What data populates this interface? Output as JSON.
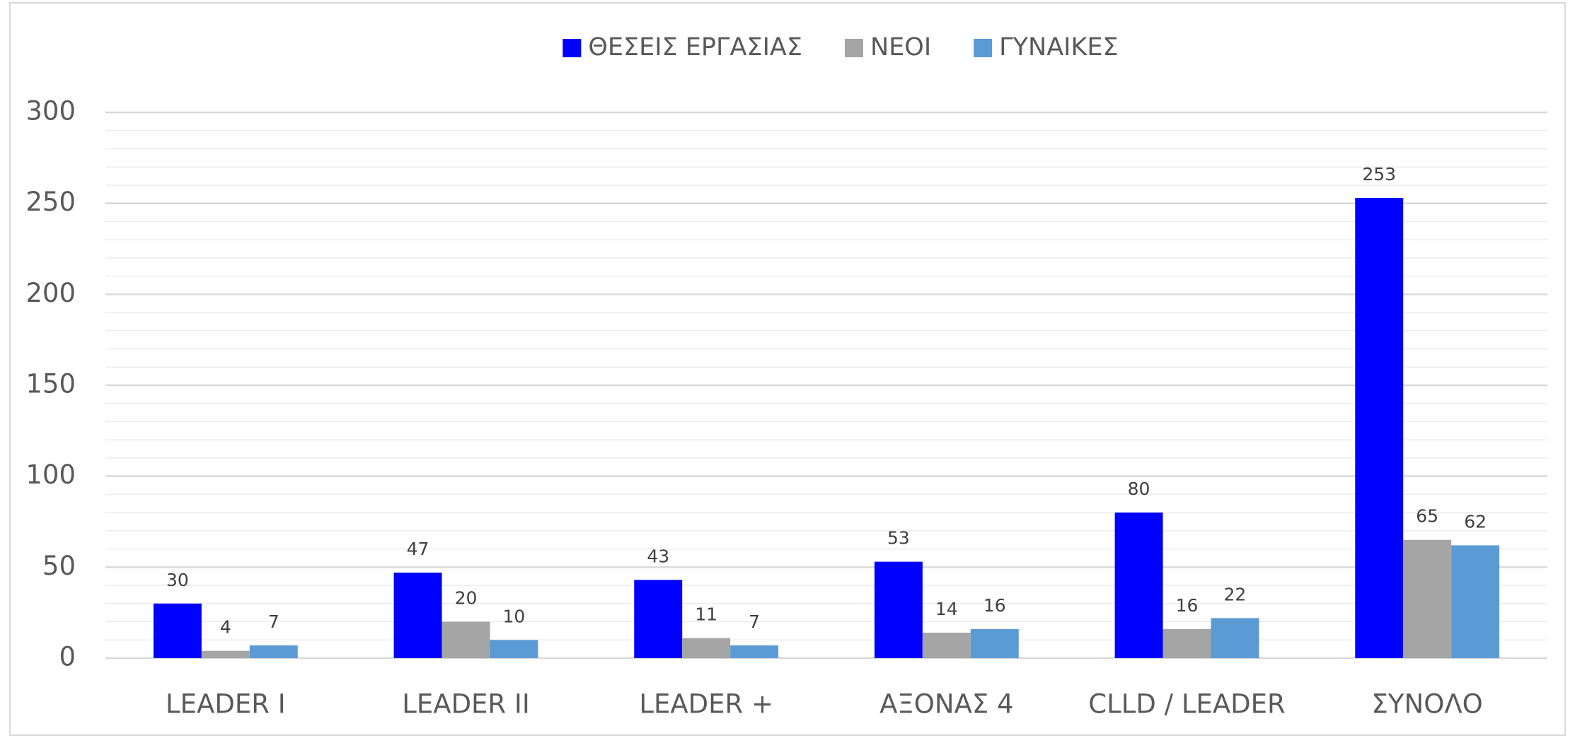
{
  "chart_data": {
    "type": "bar",
    "categories": [
      "LEADER I",
      "LEADER II",
      "LEADER +",
      "ΑΞΟΝΑΣ 4",
      "CLLD / LEADER",
      "ΣΥΝΟΛΟ"
    ],
    "series": [
      {
        "name": "ΘΕΣΕΙΣ ΕΡΓΑΣΙΑΣ",
        "color": "#0000ff",
        "values": [
          30,
          47,
          43,
          53,
          80,
          253
        ]
      },
      {
        "name": "ΝΕΟΙ",
        "color": "#a5a5a5",
        "values": [
          4,
          20,
          11,
          14,
          16,
          65
        ]
      },
      {
        "name": "ΓΥΝΑΙΚΕΣ",
        "color": "#5b9bd5",
        "values": [
          7,
          10,
          7,
          16,
          22,
          62
        ]
      }
    ],
    "ylim": [
      0,
      300
    ],
    "yticks": [
      0,
      50,
      100,
      150,
      200,
      250,
      300
    ],
    "grid": true,
    "legend": "top"
  }
}
